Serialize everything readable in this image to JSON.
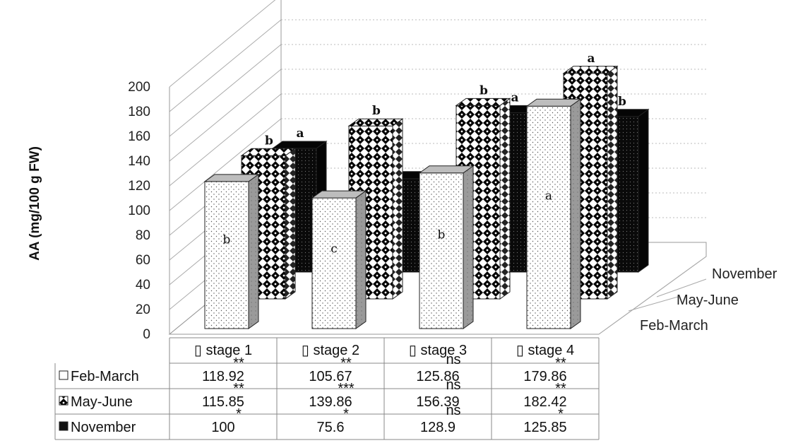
{
  "chart_data": {
    "type": "bar",
    "categories": [
      "stage 1",
      "stage 2",
      "stage 3",
      "stage 4"
    ],
    "series": [
      {
        "name": "Feb-March",
        "values": [
          118.92,
          105.67,
          125.86,
          179.86
        ],
        "letters": [
          "b",
          "c",
          "b",
          "a"
        ]
      },
      {
        "name": "May-June",
        "values": [
          115.85,
          139.86,
          156.39,
          182.42
        ],
        "letters": [
          "b",
          "b",
          "b",
          "a"
        ]
      },
      {
        "name": "November",
        "values": [
          100,
          75.6,
          128.9,
          125.85
        ],
        "letters": [
          "a",
          "",
          "a",
          "b"
        ]
      }
    ],
    "significance": [
      [
        "**",
        "**",
        "ns",
        "**"
      ],
      [
        "**",
        "***",
        "ns",
        "**"
      ],
      [
        "*",
        "*",
        "ns",
        "*"
      ]
    ],
    "category_marker": "▯",
    "ylabel": "AA (mg/100 g FW)",
    "yticks": [
      "0",
      "20",
      "40",
      "60",
      "80",
      "100",
      "120",
      "140",
      "160",
      "180",
      "200"
    ],
    "ylim": [
      0,
      200
    ],
    "grid": true,
    "three_d": true,
    "colors": {
      "feb_march": "#ffffff",
      "may_june": "#ffffff",
      "november": "#111111",
      "side": "#9a9a9a",
      "top": "#bdbdbd"
    }
  }
}
